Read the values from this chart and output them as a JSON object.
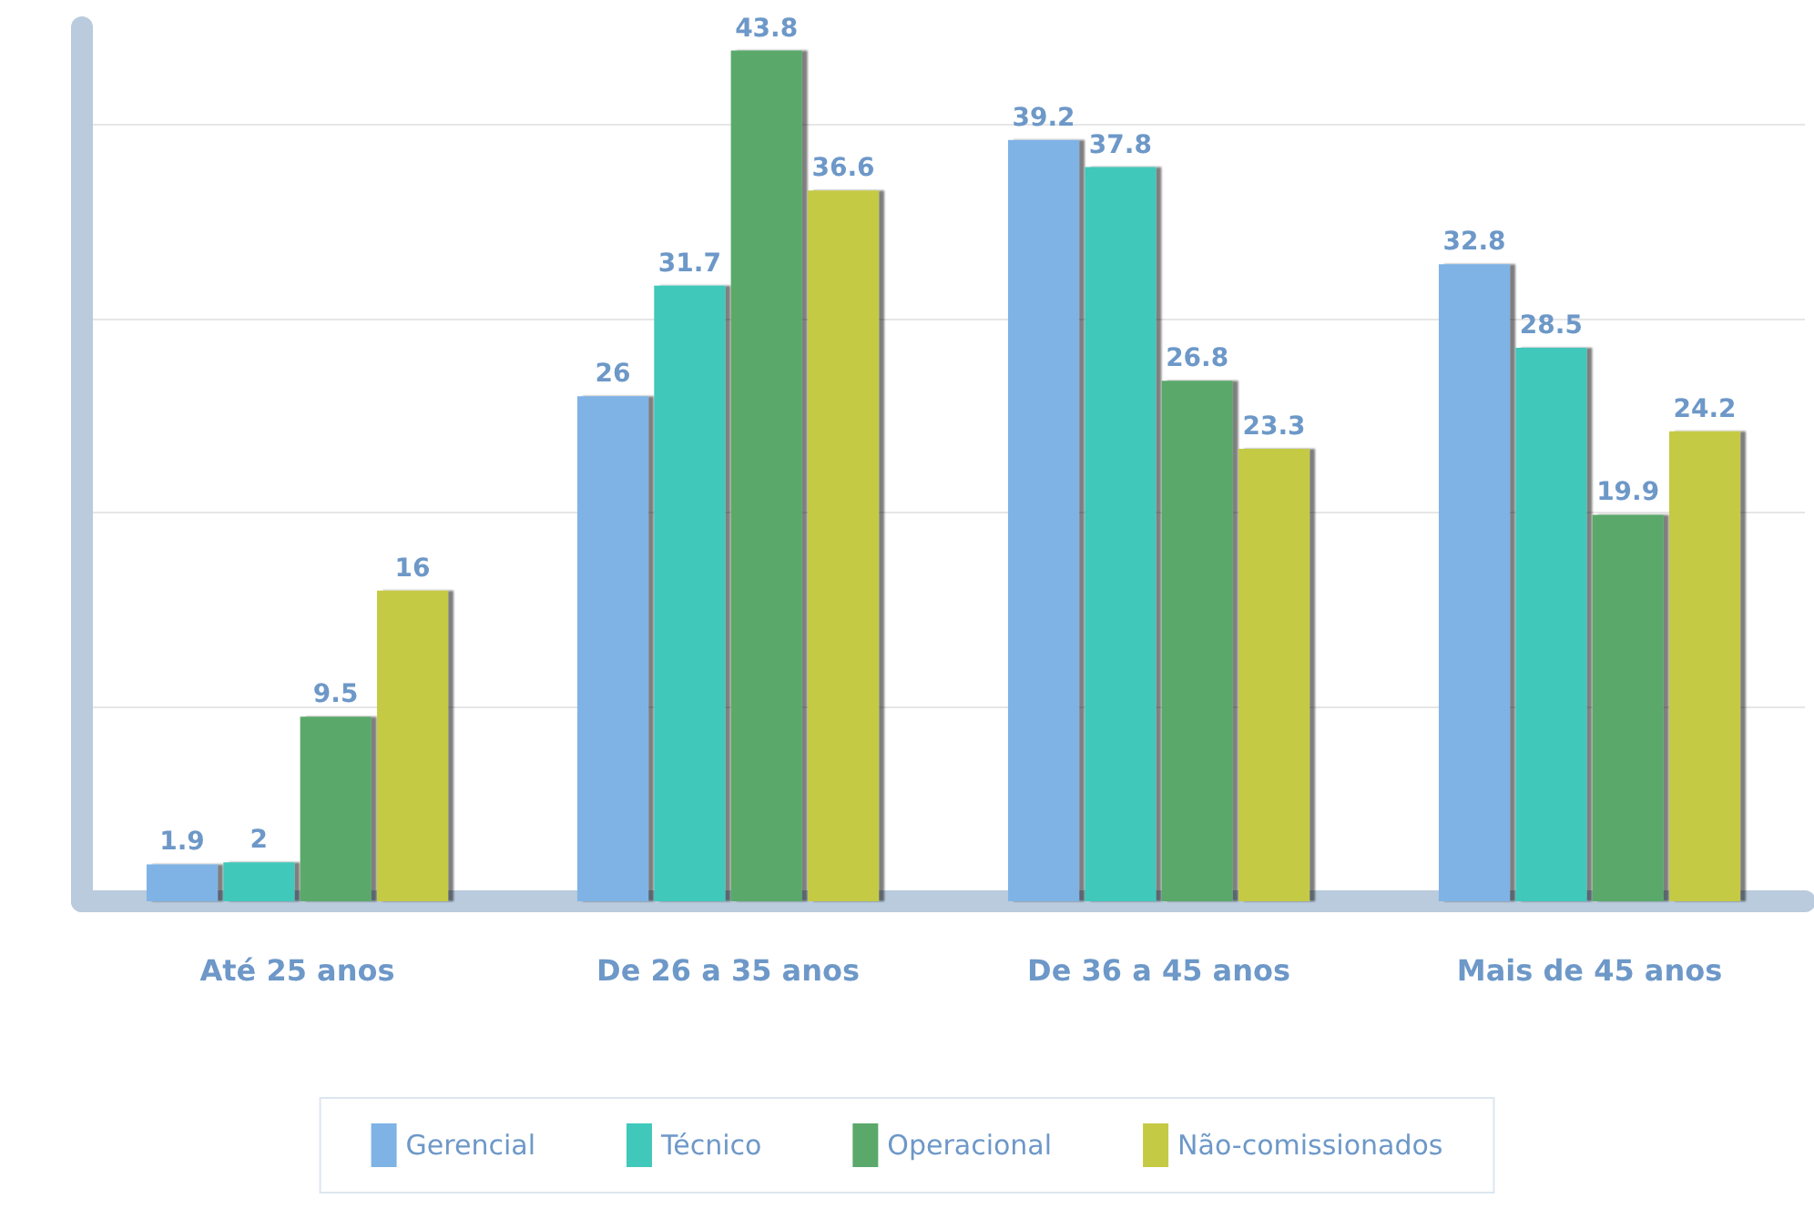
{
  "chart_data": {
    "type": "bar",
    "categories": [
      "Até 25 anos",
      "De 26 a 35 anos",
      "De 36 a 45 anos",
      "Mais de 45 anos"
    ],
    "series": [
      {
        "name": "Gerencial",
        "color": "#7fb3e6",
        "values": [
          1.9,
          26,
          39.2,
          32.8
        ]
      },
      {
        "name": "Técnico",
        "color": "#40c8bb",
        "values": [
          2,
          31.7,
          37.8,
          28.5
        ]
      },
      {
        "name": "Operacional",
        "color": "#5aa96b",
        "values": [
          9.5,
          43.8,
          26.8,
          19.9
        ]
      },
      {
        "name": "Não-comissionados",
        "color": "#c5ca44",
        "values": [
          16,
          36.6,
          23.3,
          24.2
        ]
      }
    ],
    "ylim": [
      0,
      45
    ],
    "yticks": [
      {
        "value": 0,
        "label": null
      },
      {
        "value": 10,
        "label": null
      },
      {
        "value": 20,
        "label": null
      },
      {
        "value": 30,
        "label": null
      },
      {
        "value": 40,
        "label": null
      }
    ],
    "tick_labels": "x",
    "grid": "y",
    "legend": "bottom",
    "data_labels": true
  }
}
